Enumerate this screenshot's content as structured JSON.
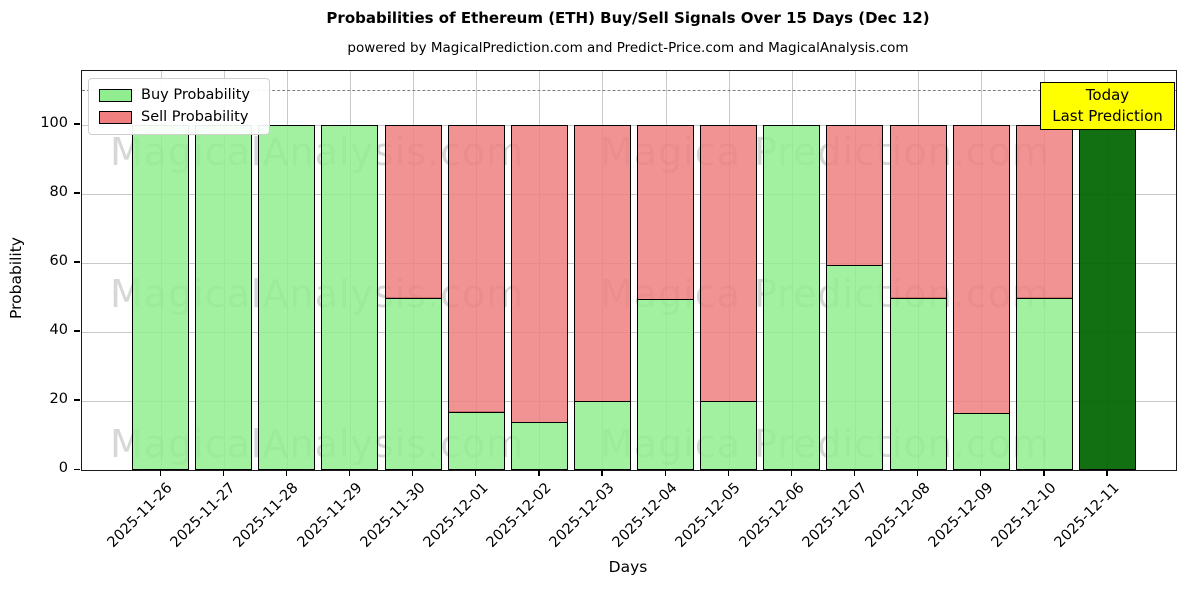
{
  "header": {
    "title": "Probabilities of Ethereum (ETH) Buy/Sell Signals Over 15 Days (Dec 12)",
    "subtitle": "powered by MagicalPrediction.com and Predict-Price.com and MagicalAnalysis.com"
  },
  "legend": {
    "items": [
      {
        "label": "Buy Probability",
        "color": "#90EE90"
      },
      {
        "label": "Sell Probability",
        "color": "#F08080"
      }
    ]
  },
  "annotation": {
    "line1": "Today",
    "line2": "Last Prediction",
    "bg_color": "#FFFF00"
  },
  "watermarks": {
    "left_text": "MagicalAnalysis.com",
    "right_text": "Magica Prediction.com"
  },
  "chart_data": {
    "type": "bar",
    "stacked": true,
    "title": "Probabilities of Ethereum (ETH) Buy/Sell Signals Over 15 Days (Dec 12)",
    "xlabel": "Days",
    "ylabel": "Probability",
    "categories": [
      "2025-11-26",
      "2025-11-27",
      "2025-11-28",
      "2025-11-29",
      "2025-11-30",
      "2025-12-01",
      "2025-12-02",
      "2025-12-03",
      "2025-12-04",
      "2025-12-05",
      "2025-12-06",
      "2025-12-07",
      "2025-12-08",
      "2025-12-09",
      "2025-12-10",
      "2025-12-11"
    ],
    "series": [
      {
        "name": "Buy Probability",
        "color": "#90EE90",
        "values": [
          100,
          100,
          100,
          100,
          50,
          17,
          14,
          20,
          49.5,
          20,
          100,
          59.5,
          50,
          16.5,
          50,
          100
        ]
      },
      {
        "name": "Sell Probability",
        "color": "#F08080",
        "values": [
          0,
          0,
          0,
          0,
          50,
          83,
          86,
          80,
          50.5,
          80,
          0,
          40.5,
          50,
          83.5,
          50,
          0
        ]
      }
    ],
    "today_bar": {
      "index": 15,
      "color": "#006400",
      "note": "Today / Last Prediction"
    },
    "ylim": [
      0,
      115.6
    ],
    "yticks": [
      0,
      20,
      40,
      60,
      80,
      100
    ],
    "dashed_line_y": 110,
    "grid": true,
    "legend_position": "upper left"
  }
}
